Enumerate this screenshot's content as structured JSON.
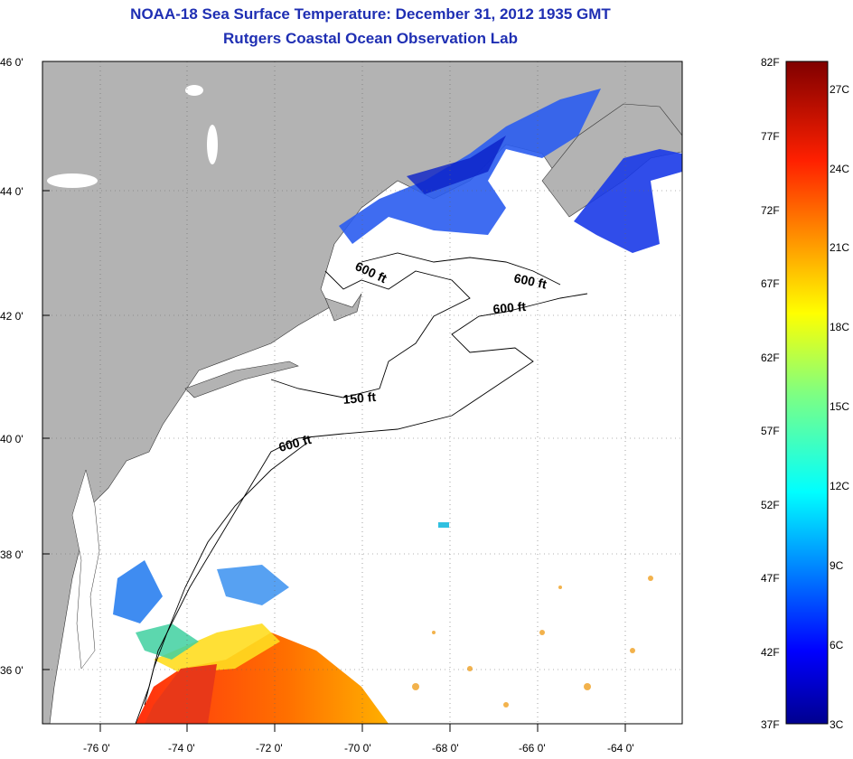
{
  "title": {
    "line1": "NOAA-18 Sea Surface Temperature:  December 31, 2012 1935 GMT",
    "line2": "Rutgers Coastal Ocean Observation Lab"
  },
  "axes": {
    "lat_labels": [
      "46 0'",
      "44 0'",
      "42 0'",
      "40 0'",
      "38 0'",
      "36 0'"
    ],
    "lon_labels": [
      "-76 0'",
      "-74 0'",
      "-72 0'",
      "-70 0'",
      "-68 0'",
      "-66 0'",
      "-64 0'"
    ]
  },
  "contours": {
    "labels": [
      "600 ft",
      "600 ft",
      "600 ft",
      "150 ft",
      "600 ft"
    ]
  },
  "colorbar": {
    "f_labels": [
      "82F",
      "77F",
      "72F",
      "67F",
      "62F",
      "57F",
      "52F",
      "47F",
      "42F",
      "37F"
    ],
    "c_labels": [
      "27C",
      "24C",
      "21C",
      "18C",
      "15C",
      "12C",
      "9C",
      "6C",
      "3C"
    ]
  },
  "colors": {
    "land": "#b3b3b3",
    "title": "#1f2fb3",
    "ocean_no_data": "#ffffff"
  }
}
